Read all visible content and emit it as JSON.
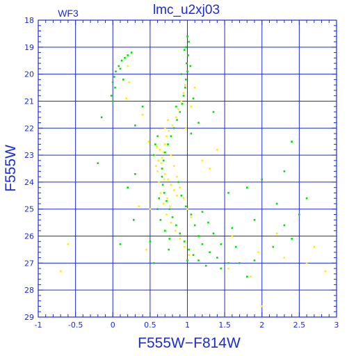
{
  "chart_data": {
    "type": "scatter",
    "title": "lmc_u2xj03",
    "corner_label": "WF3",
    "xlabel": "F555W−F814W",
    "ylabel": "F555W",
    "xlim": [
      -1,
      3
    ],
    "ylim": [
      18,
      29
    ],
    "y_inverted": true,
    "grid": true,
    "x_ticks": [
      "-1",
      "-0.5",
      "0",
      "0.5",
      "1",
      "1.5",
      "2",
      "2.5",
      "3"
    ],
    "y_ticks": [
      "18",
      "19",
      "20",
      "21",
      "22",
      "23",
      "24",
      "25",
      "26",
      "27",
      "28",
      "29"
    ],
    "colors": {
      "axes": "#1a2bd8",
      "grid": "#1a2bd8",
      "series_a": "#00e000",
      "series_b": "#ffee00"
    },
    "series": [
      {
        "color_key": "series_b",
        "points": [
          [
            0.72,
            22.3
          ],
          [
            0.7,
            22.6
          ],
          [
            0.68,
            22.9
          ],
          [
            0.66,
            23.1
          ],
          [
            0.65,
            23.3
          ],
          [
            0.67,
            23.5
          ],
          [
            0.7,
            23.7
          ],
          [
            0.74,
            23.9
          ],
          [
            0.78,
            24.1
          ],
          [
            0.82,
            24.3
          ],
          [
            0.86,
            24.5
          ],
          [
            0.75,
            22.1
          ],
          [
            0.8,
            21.9
          ],
          [
            0.85,
            21.6
          ],
          [
            0.88,
            21.3
          ],
          [
            0.92,
            21.0
          ],
          [
            0.95,
            20.7
          ],
          [
            0.97,
            20.4
          ],
          [
            0.63,
            22.8
          ],
          [
            0.61,
            23.2
          ],
          [
            0.6,
            23.6
          ],
          [
            0.62,
            24.0
          ],
          [
            0.64,
            24.4
          ],
          [
            0.68,
            24.8
          ],
          [
            0.72,
            25.2
          ],
          [
            0.78,
            25.5
          ],
          [
            0.84,
            25.8
          ],
          [
            0.9,
            26.1
          ],
          [
            0.96,
            26.4
          ],
          [
            1.02,
            26.7
          ],
          [
            0.78,
            23.0
          ],
          [
            0.82,
            23.4
          ],
          [
            0.86,
            23.8
          ],
          [
            0.9,
            24.2
          ],
          [
            0.95,
            24.6
          ],
          [
            1.0,
            25.0
          ],
          [
            1.05,
            25.3
          ],
          [
            0.7,
            22.0
          ],
          [
            0.74,
            21.7
          ],
          [
            0.69,
            23.9
          ],
          [
            0.73,
            24.6
          ],
          [
            0.77,
            24.9
          ],
          [
            0.58,
            23.4
          ],
          [
            0.56,
            23.0
          ],
          [
            0.59,
            22.7
          ],
          [
            1.1,
            20.5
          ],
          [
            1.05,
            21.2
          ],
          [
            0.98,
            22.0
          ],
          [
            0.2,
            19.7
          ],
          [
            0.22,
            20.3
          ],
          [
            0.18,
            20.9
          ],
          [
            0.4,
            21.5
          ],
          [
            0.48,
            22.5
          ],
          [
            1.3,
            23.5
          ],
          [
            1.6,
            26.0
          ],
          [
            1.7,
            27.0
          ],
          [
            2.3,
            26.8
          ],
          [
            2.6,
            27.0
          ],
          [
            2.2,
            25.9
          ],
          [
            1.95,
            26.6
          ],
          [
            -0.6,
            26.3
          ],
          [
            -0.7,
            27.3
          ],
          [
            2.85,
            27.3
          ],
          [
            2.0,
            28.6
          ],
          [
            1.4,
            22.8
          ],
          [
            1.2,
            23.2
          ],
          [
            0.5,
            25.0
          ],
          [
            0.45,
            26.5
          ],
          [
            1.85,
            27.5
          ],
          [
            2.7,
            26.4
          ],
          [
            0.35,
            24.9
          ],
          [
            1.55,
            27.2
          ]
        ]
      },
      {
        "color_key": "series_a",
        "points": [
          [
            1.0,
            18.6
          ],
          [
            1.02,
            18.8
          ],
          [
            0.98,
            19.0
          ],
          [
            1.01,
            19.3
          ],
          [
            0.99,
            19.6
          ],
          [
            1.0,
            19.9
          ],
          [
            0.98,
            20.2
          ],
          [
            0.97,
            20.5
          ],
          [
            0.95,
            20.8
          ],
          [
            0.93,
            21.1
          ],
          [
            0.9,
            21.4
          ],
          [
            0.86,
            21.7
          ],
          [
            0.82,
            22.0
          ],
          [
            0.78,
            22.3
          ],
          [
            0.74,
            22.6
          ],
          [
            0.7,
            22.9
          ],
          [
            0.68,
            23.2
          ],
          [
            0.66,
            23.5
          ],
          [
            0.66,
            23.8
          ],
          [
            0.67,
            24.1
          ],
          [
            0.69,
            24.4
          ],
          [
            0.72,
            24.7
          ],
          [
            0.76,
            25.0
          ],
          [
            0.8,
            25.3
          ],
          [
            0.85,
            25.6
          ],
          [
            0.9,
            25.9
          ],
          [
            0.96,
            26.2
          ],
          [
            1.02,
            26.5
          ],
          [
            1.08,
            26.7
          ],
          [
            1.15,
            26.9
          ],
          [
            1.05,
            25.2
          ],
          [
            1.1,
            25.6
          ],
          [
            1.15,
            26.0
          ],
          [
            1.2,
            26.3
          ],
          [
            1.3,
            26.6
          ],
          [
            1.4,
            26.8
          ],
          [
            1.55,
            27.0
          ],
          [
            1.7,
            27.0
          ],
          [
            1.9,
            26.9
          ],
          [
            1.2,
            25.1
          ],
          [
            1.28,
            25.5
          ],
          [
            1.35,
            25.9
          ],
          [
            1.45,
            26.3
          ],
          [
            0.62,
            24.6
          ],
          [
            0.6,
            25.0
          ],
          [
            0.64,
            25.4
          ],
          [
            0.7,
            25.8
          ],
          [
            0.76,
            26.1
          ],
          [
            0.55,
            23.0
          ],
          [
            0.57,
            22.6
          ],
          [
            0.6,
            22.3
          ],
          [
            0.88,
            24.0
          ],
          [
            0.92,
            24.5
          ],
          [
            0.98,
            24.9
          ],
          [
            0.04,
            19.9
          ],
          [
            0.08,
            19.7
          ],
          [
            0.12,
            19.5
          ],
          [
            0.16,
            19.4
          ],
          [
            0.2,
            19.3
          ],
          [
            0.25,
            19.2
          ],
          [
            0.02,
            20.1
          ],
          [
            0.0,
            20.3
          ],
          [
            0.03,
            20.5
          ],
          [
            -0.02,
            20.8
          ],
          [
            0.0,
            21.0
          ],
          [
            0.1,
            19.8
          ],
          [
            0.14,
            20.2
          ],
          [
            0.4,
            21.2
          ],
          [
            0.3,
            21.9
          ],
          [
            1.05,
            22.2
          ],
          [
            1.15,
            21.8
          ],
          [
            1.08,
            20.9
          ],
          [
            0.3,
            23.7
          ],
          [
            0.2,
            24.2
          ],
          [
            -0.2,
            23.3
          ],
          [
            2.4,
            22.5
          ],
          [
            2.3,
            23.6
          ],
          [
            2.0,
            23.9
          ],
          [
            1.8,
            24.2
          ],
          [
            1.55,
            24.4
          ],
          [
            2.2,
            24.8
          ],
          [
            2.5,
            25.2
          ],
          [
            2.3,
            25.6
          ],
          [
            1.9,
            25.4
          ],
          [
            1.6,
            25.7
          ],
          [
            0.1,
            26.3
          ],
          [
            0.28,
            25.4
          ],
          [
            2.15,
            26.4
          ],
          [
            2.4,
            26.1
          ],
          [
            1.8,
            27.5
          ],
          [
            2.6,
            24.6
          ],
          [
            1.35,
            21.4
          ],
          [
            0.75,
            26.5
          ],
          [
            0.5,
            26.2
          ],
          [
            1.0,
            26.9
          ],
          [
            1.25,
            27.1
          ],
          [
            1.45,
            27.2
          ],
          [
            1.65,
            26.4
          ],
          [
            0.85,
            21.2
          ],
          [
            0.92,
            20.0
          ],
          [
            1.04,
            19.7
          ],
          [
            0.96,
            19.1
          ],
          [
            -0.15,
            21.6
          ],
          [
            0.55,
            27.0
          ]
        ]
      }
    ]
  }
}
